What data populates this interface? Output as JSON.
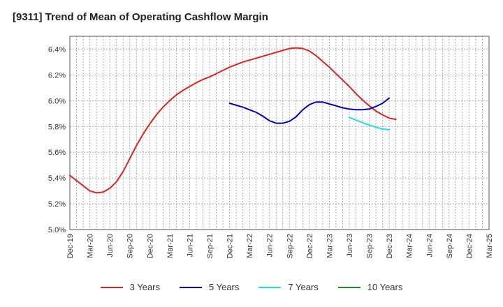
{
  "chart_data": {
    "type": "line",
    "title": "[9311]  Trend of Mean of Operating Cashflow Margin",
    "xlabel": "",
    "ylabel": "",
    "x_ticks": [
      "Dec-19",
      "Mar-20",
      "Jun-20",
      "Sep-20",
      "Dec-20",
      "Mar-21",
      "Jun-21",
      "Sep-21",
      "Dec-21",
      "Mar-22",
      "Jun-22",
      "Sep-22",
      "Dec-22",
      "Mar-23",
      "Jun-23",
      "Sep-23",
      "Dec-23",
      "Mar-24",
      "Jun-24",
      "Sep-24",
      "Dec-24",
      "Mar-25"
    ],
    "y_ticks": [
      "5.0%",
      "5.2%",
      "5.4%",
      "5.6%",
      "5.8%",
      "6.0%",
      "6.2%",
      "6.4%"
    ],
    "y_tick_values": [
      5.0,
      5.2,
      5.4,
      5.6,
      5.8,
      6.0,
      6.2,
      6.4
    ],
    "ylim": [
      5.0,
      6.5
    ],
    "grid": true,
    "legend_position": "bottom",
    "series": [
      {
        "name": "3 Years",
        "color": "#dd2222",
        "points": [
          [
            0,
            5.42
          ],
          [
            1,
            5.38
          ],
          [
            2,
            5.34
          ],
          [
            3,
            5.3
          ],
          [
            4,
            5.285
          ],
          [
            5,
            5.29
          ],
          [
            6,
            5.32
          ],
          [
            7,
            5.37
          ],
          [
            8,
            5.45
          ],
          [
            9,
            5.55
          ],
          [
            10,
            5.65
          ],
          [
            11,
            5.74
          ],
          [
            12,
            5.82
          ],
          [
            13,
            5.89
          ],
          [
            14,
            5.95
          ],
          [
            15,
            6.0
          ],
          [
            16,
            6.045
          ],
          [
            17,
            6.08
          ],
          [
            18,
            6.11
          ],
          [
            19,
            6.14
          ],
          [
            20,
            6.165
          ],
          [
            21,
            6.185
          ],
          [
            22,
            6.21
          ],
          [
            23,
            6.235
          ],
          [
            24,
            6.26
          ],
          [
            25,
            6.28
          ],
          [
            26,
            6.3
          ],
          [
            27,
            6.315
          ],
          [
            28,
            6.33
          ],
          [
            29,
            6.345
          ],
          [
            30,
            6.36
          ],
          [
            31,
            6.375
          ],
          [
            32,
            6.39
          ],
          [
            33,
            6.405
          ],
          [
            34,
            6.41
          ],
          [
            35,
            6.405
          ],
          [
            36,
            6.385
          ],
          [
            37,
            6.35
          ],
          [
            38,
            6.305
          ],
          [
            39,
            6.26
          ],
          [
            40,
            6.21
          ],
          [
            41,
            6.16
          ],
          [
            42,
            6.11
          ],
          [
            43,
            6.055
          ],
          [
            44,
            6.005
          ],
          [
            45,
            5.96
          ],
          [
            46,
            5.92
          ],
          [
            47,
            5.89
          ],
          [
            48,
            5.865
          ],
          [
            49,
            5.855
          ]
        ]
      },
      {
        "name": "5 Years",
        "color": "#0000bb",
        "points": [
          [
            24,
            5.98
          ],
          [
            25,
            5.965
          ],
          [
            26,
            5.95
          ],
          [
            27,
            5.93
          ],
          [
            28,
            5.91
          ],
          [
            29,
            5.88
          ],
          [
            30,
            5.845
          ],
          [
            31,
            5.825
          ],
          [
            32,
            5.825
          ],
          [
            33,
            5.84
          ],
          [
            34,
            5.875
          ],
          [
            35,
            5.93
          ],
          [
            36,
            5.97
          ],
          [
            37,
            5.99
          ],
          [
            38,
            5.99
          ],
          [
            39,
            5.975
          ],
          [
            40,
            5.96
          ],
          [
            41,
            5.945
          ],
          [
            42,
            5.935
          ],
          [
            43,
            5.93
          ],
          [
            44,
            5.93
          ],
          [
            45,
            5.935
          ],
          [
            46,
            5.955
          ],
          [
            47,
            5.98
          ],
          [
            48,
            6.02
          ]
        ]
      },
      {
        "name": "7 Years",
        "color": "#22dddd",
        "points": [
          [
            42,
            5.87
          ],
          [
            43,
            5.85
          ],
          [
            44,
            5.83
          ],
          [
            45,
            5.81
          ],
          [
            46,
            5.795
          ],
          [
            47,
            5.78
          ],
          [
            48,
            5.775
          ]
        ]
      },
      {
        "name": "10 Years",
        "color": "#228822",
        "points": []
      }
    ]
  }
}
